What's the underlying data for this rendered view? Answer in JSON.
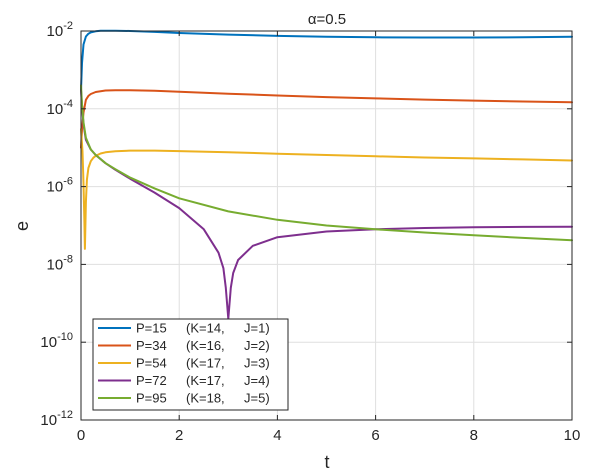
{
  "chart_data": {
    "type": "line",
    "title": "α=0.5",
    "xlabel": "t",
    "ylabel": "e",
    "xlim": [
      0,
      10
    ],
    "ylim": [
      1e-12,
      0.01
    ],
    "yscale": "log",
    "grid": true,
    "legend_position": "bottom-left",
    "x_ticks": [
      {
        "value": 0,
        "label": "0"
      },
      {
        "value": 2,
        "label": "2"
      },
      {
        "value": 4,
        "label": "4"
      },
      {
        "value": 6,
        "label": "6"
      },
      {
        "value": 8,
        "label": "8"
      },
      {
        "value": 10,
        "label": "10"
      }
    ],
    "y_ticks": [
      {
        "value": 1e-12,
        "base": "10",
        "exp": "-12"
      },
      {
        "value": 1e-10,
        "base": "10",
        "exp": "-10"
      },
      {
        "value": 1e-08,
        "base": "10",
        "exp": "-8"
      },
      {
        "value": 1e-06,
        "base": "10",
        "exp": "-6"
      },
      {
        "value": 0.0001,
        "base": "10",
        "exp": "-4"
      },
      {
        "value": 0.01,
        "base": "10",
        "exp": "-2"
      }
    ],
    "series": [
      {
        "name": "P=15",
        "legend": {
          "p": "P=15",
          "k": "(K=14,",
          "j": "J=1)"
        },
        "color": "#0072BD",
        "x": [
          0,
          0.02,
          0.05,
          0.1,
          0.15,
          0.2,
          0.3,
          0.4,
          0.5,
          0.7,
          1,
          1.5,
          2,
          3,
          4,
          5,
          6,
          7,
          8,
          9,
          10
        ],
        "y": [
          0.0003,
          0.0015,
          0.0045,
          0.0072,
          0.0085,
          0.0092,
          0.0098,
          0.0101,
          0.0102,
          0.0102,
          0.01,
          0.0095,
          0.0089,
          0.0081,
          0.0075,
          0.0071,
          0.0069,
          0.0068,
          0.0068,
          0.0069,
          0.0071
        ]
      },
      {
        "name": "P=34",
        "legend": {
          "p": "P=34",
          "k": "(K=16,",
          "j": "J=2)"
        },
        "color": "#D95319",
        "x": [
          0,
          0.02,
          0.05,
          0.1,
          0.15,
          0.2,
          0.3,
          0.5,
          0.7,
          1,
          1.5,
          2,
          3,
          4,
          5,
          6,
          7,
          8,
          9,
          10
        ],
        "y": [
          1e-05,
          2.8e-05,
          8e-05,
          0.00017,
          0.000215,
          0.00024,
          0.00027,
          0.000295,
          0.0003,
          0.0003,
          0.00029,
          0.000275,
          0.000245,
          0.00022,
          0.0002,
          0.000185,
          0.000172,
          0.000162,
          0.000154,
          0.000147
        ]
      },
      {
        "name": "P=54",
        "legend": {
          "p": "P=54",
          "k": "(K=17,",
          "j": "J=3)"
        },
        "color": "#EDB120",
        "x": [
          0,
          0.03,
          0.05,
          0.07,
          0.08,
          0.09,
          0.1,
          0.12,
          0.15,
          0.2,
          0.25,
          0.3,
          0.4,
          0.5,
          0.7,
          1,
          1.5,
          2,
          3,
          4,
          5,
          6,
          7,
          8,
          9,
          10
        ],
        "y": [
          3e-05,
          8e-06,
          1.2e-06,
          1.2e-07,
          2.5e-08,
          1e-07,
          4e-07,
          1.5e-06,
          3e-06,
          4.5e-06,
          5.5e-06,
          6.2e-06,
          7.1e-06,
          7.6e-06,
          8.1e-06,
          8.4e-06,
          8.4e-06,
          8.2e-06,
          7.6e-06,
          7e-06,
          6.5e-06,
          6e-06,
          5.6e-06,
          5.3e-06,
          5e-06,
          4.7e-06
        ]
      },
      {
        "name": "P=72",
        "legend": {
          "p": "P=72",
          "k": "(K=17,",
          "j": "J=4)"
        },
        "color": "#7E2F8E",
        "x": [
          0,
          0.02,
          0.05,
          0.1,
          0.2,
          0.3,
          0.5,
          0.7,
          1,
          1.5,
          2,
          2.5,
          2.8,
          2.9,
          2.95,
          3,
          3.05,
          3.1,
          3.2,
          3.5,
          4,
          5,
          6,
          7,
          8,
          9,
          10
        ],
        "y": [
          0.0003,
          0.00012,
          4e-05,
          1.6e-05,
          9e-06,
          6.5e-06,
          4e-06,
          2.7e-06,
          1.6e-06,
          7e-07,
          2.8e-07,
          8e-08,
          2e-08,
          8e-09,
          2.5e-09,
          4e-10,
          2.5e-09,
          6e-09,
          1.3e-08,
          3e-08,
          5e-08,
          7e-08,
          8e-08,
          8.6e-08,
          9e-08,
          9.2e-08,
          9.3e-08
        ]
      },
      {
        "name": "P=95",
        "legend": {
          "p": "P=95",
          "k": "(K=18,",
          "j": "J=5)"
        },
        "color": "#77AC30",
        "x": [
          0,
          0.02,
          0.05,
          0.1,
          0.2,
          0.3,
          0.5,
          0.7,
          1,
          1.5,
          2,
          3,
          4,
          5,
          6,
          7,
          8,
          9,
          10
        ],
        "y": [
          0.0004,
          0.00013,
          4.5e-05,
          1.8e-05,
          9e-06,
          6.5e-06,
          4e-06,
          2.8e-06,
          1.7e-06,
          9e-07,
          5e-07,
          2.3e-07,
          1.4e-07,
          1e-07,
          8e-08,
          6.6e-08,
          5.6e-08,
          4.8e-08,
          4.2e-08
        ]
      }
    ]
  }
}
